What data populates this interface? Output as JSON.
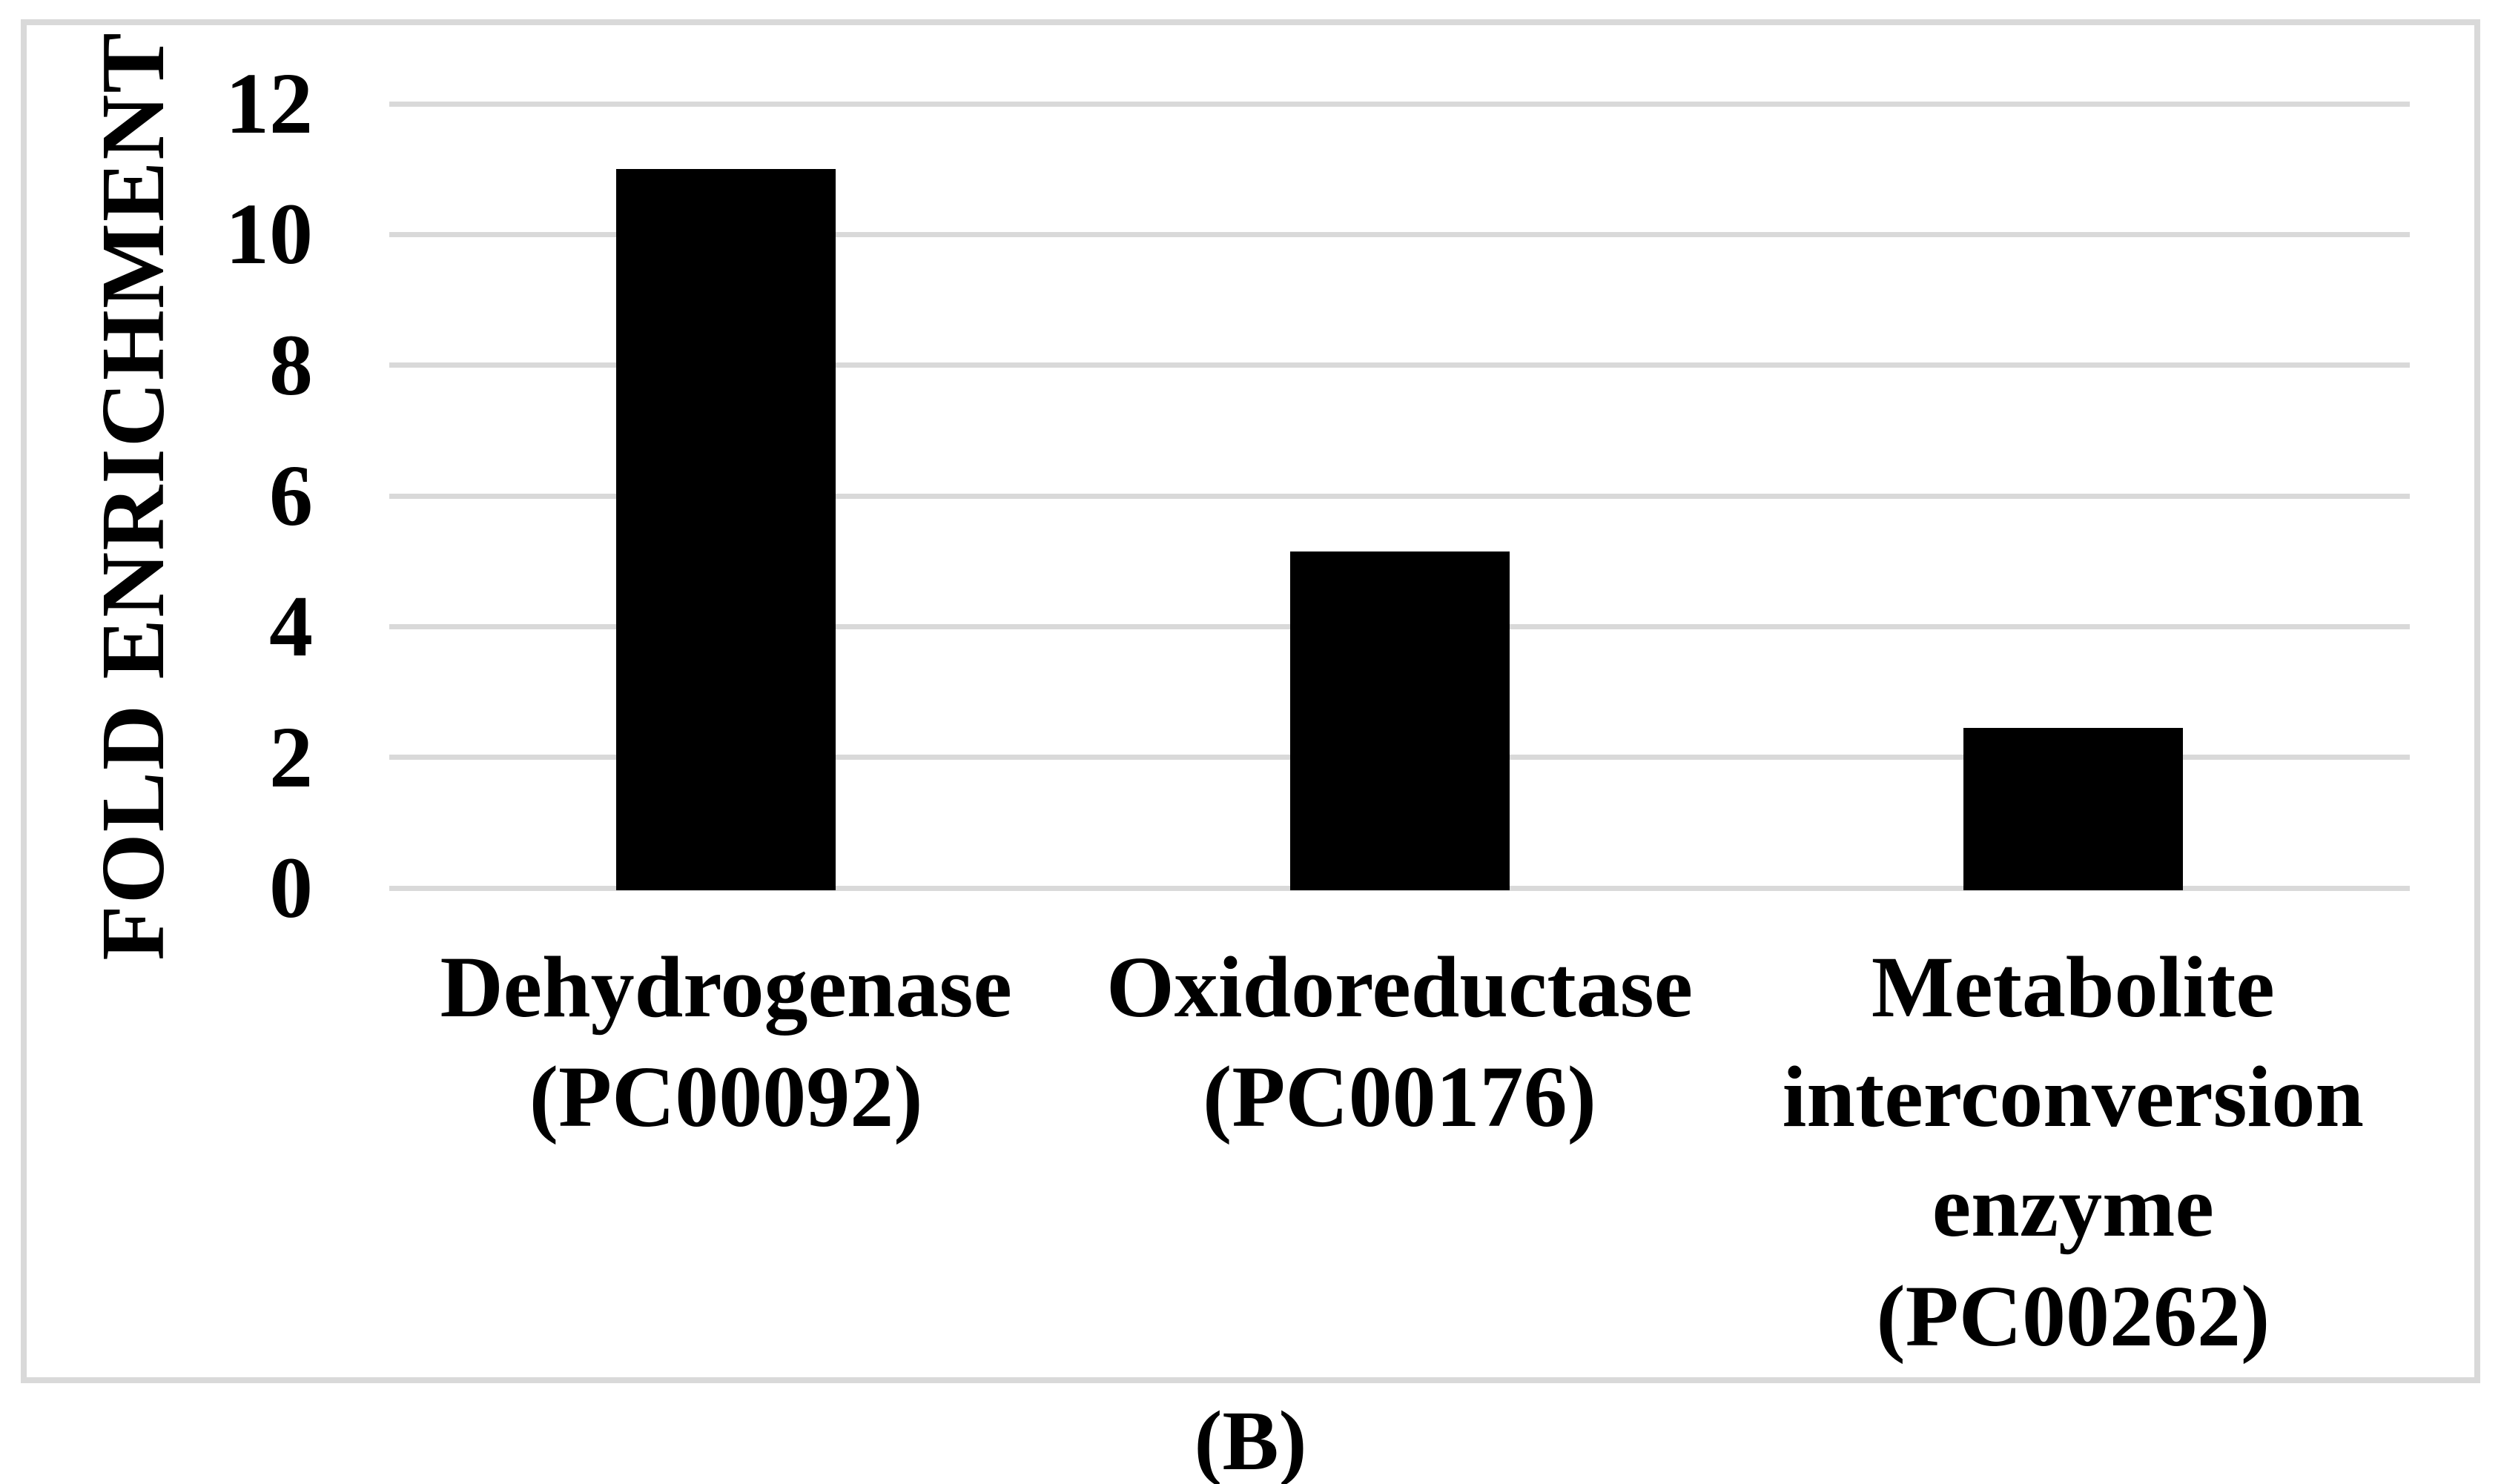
{
  "figure": {
    "caption": "(B)"
  },
  "chart_data": {
    "type": "bar",
    "title": "",
    "xlabel": "",
    "ylabel": "FOLD ENRICHMENT",
    "categories": [
      "Dehydrogenase (PC00092)",
      "Oxidoreductase (PC00176)",
      "Metabolite interconversion enzyme (PC00262)"
    ],
    "category_label_lines": [
      [
        "Dehydrogenase",
        "(PC00092)"
      ],
      [
        "Oxidoreductase",
        "(PC00176)"
      ],
      [
        "Metabolite",
        "interconversion",
        "enzyme",
        "(PC00262)"
      ]
    ],
    "values": [
      11.0,
      5.15,
      2.45
    ],
    "ylim": [
      0,
      12
    ],
    "yticks": [
      0,
      2,
      4,
      6,
      8,
      10,
      12
    ],
    "grid": true,
    "legend": "none",
    "colors": {
      "bar": "#000000",
      "gridline": "#d9d9d9",
      "border": "#d9d9d9",
      "text": "#000000",
      "background": "#ffffff"
    }
  }
}
